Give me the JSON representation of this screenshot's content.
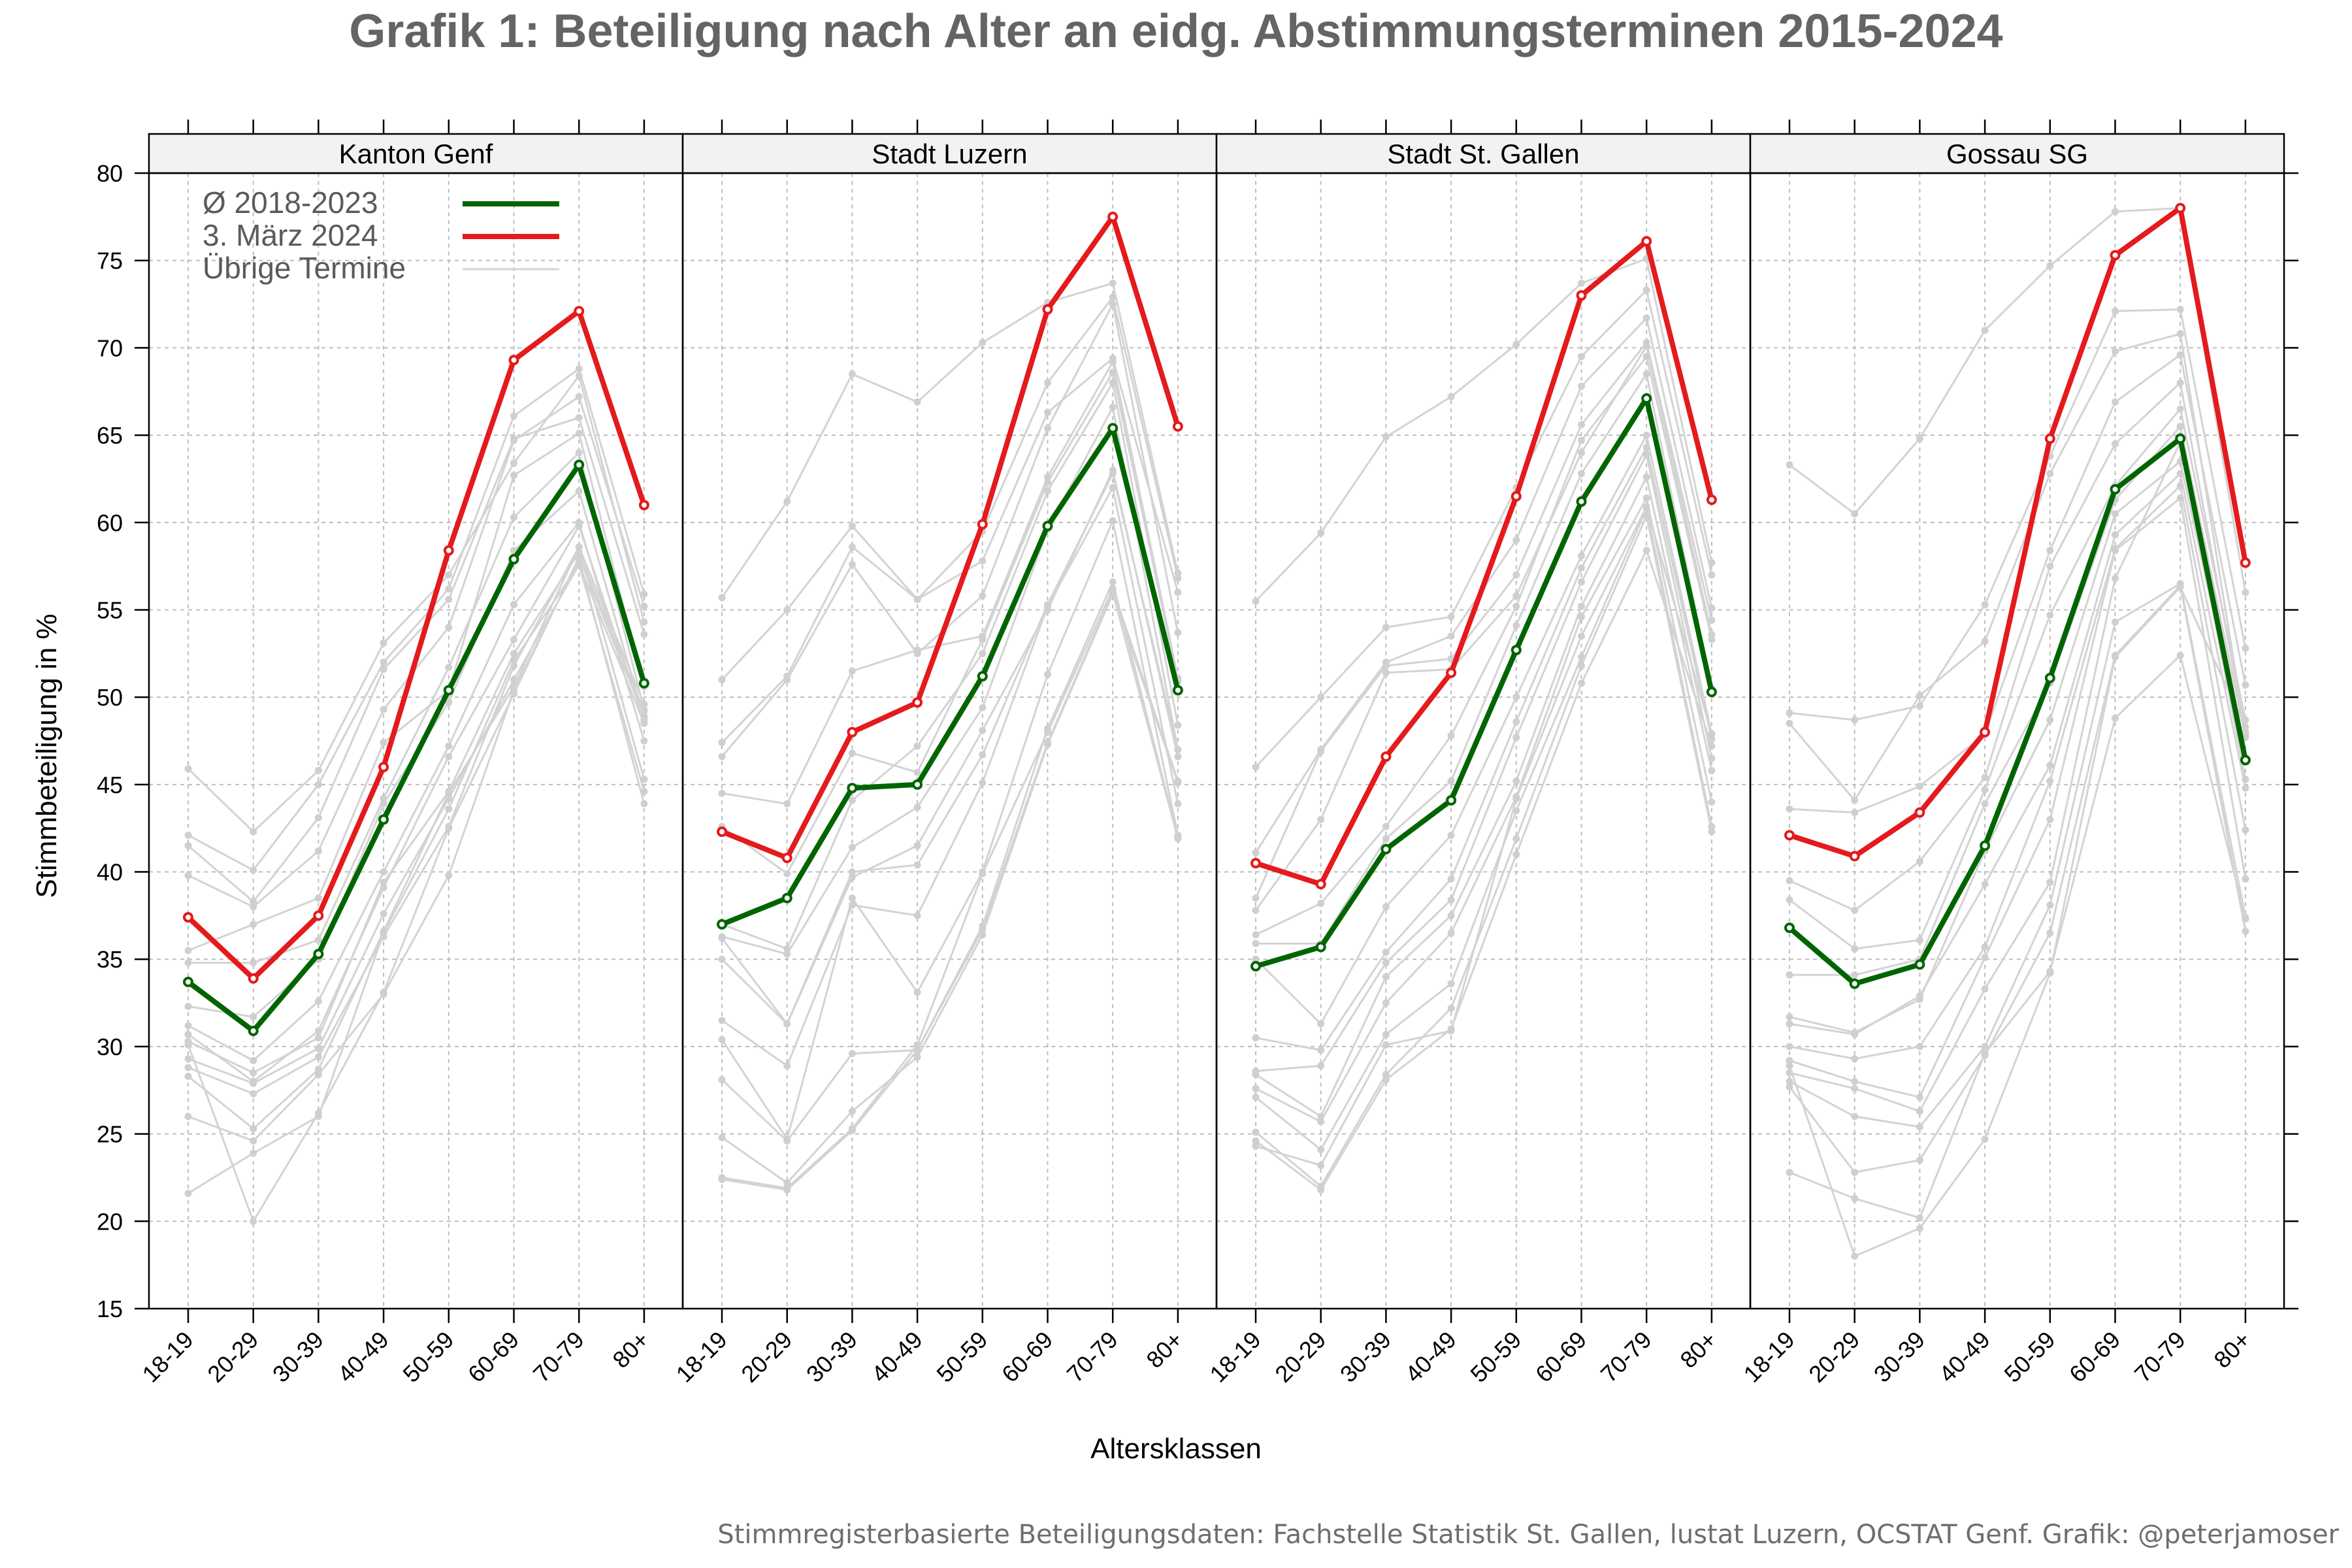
{
  "chart_data": {
    "type": "line",
    "title": "Grafik 1: Beteiligung nach Alter an eidg. Abstimmungsterminen 2015-2024",
    "xlabel": "Altersklassen",
    "ylabel": "Stimmbeteiligung in %",
    "ylim": [
      15,
      80
    ],
    "yticks": [
      15,
      20,
      25,
      30,
      35,
      40,
      45,
      50,
      55,
      60,
      65,
      70,
      75,
      80
    ],
    "categories": [
      "18-19",
      "20-29",
      "30-39",
      "40-49",
      "50-59",
      "60-69",
      "70-79",
      "80+"
    ],
    "grid": true,
    "legend_position": "top-left",
    "legend": [
      {
        "label": "Ø 2018-2023",
        "color": "#006400"
      },
      {
        "label": "3. März 2024",
        "color": "#e41a1c"
      },
      {
        "label": "Übrige Termine",
        "color": "#d3d3d3"
      }
    ],
    "colors": {
      "avg": "#006400",
      "march": "#e41a1c",
      "other": "#d3d3d3",
      "strip": "#f2f2f2",
      "grid": "#bdbdbd"
    },
    "source": "Stimmregisterbasierte Beteiligungsdaten: Fachstelle Statistik St. Gallen, lustat Luzern, OCSTAT Genf. Grafik: @peterjamoser",
    "panels": [
      {
        "name": "Kanton Genf",
        "series": [
          {
            "name": "Ø 2018-2023",
            "values": [
              33.7,
              30.9,
              35.3,
              43.0,
              50.4,
              57.9,
              63.3,
              50.8
            ]
          },
          {
            "name": "3. März 2024",
            "values": [
              37.4,
              33.9,
              37.5,
              46.0,
              58.4,
              69.3,
              72.1,
              61.0
            ]
          }
        ],
        "others": [
          [
            45.9,
            42.3,
            45.8,
            53.1,
            57.0,
            63.4,
            68.4,
            54.3
          ],
          [
            42.1,
            40.1,
            45.0,
            52.0,
            56.2,
            66.1,
            68.8,
            55.9
          ],
          [
            41.5,
            38.3,
            43.1,
            51.6,
            55.6,
            64.8,
            66.0,
            53.6
          ],
          [
            39.8,
            38.0,
            41.2,
            49.3,
            54.0,
            64.7,
            67.2,
            55.2
          ],
          [
            35.5,
            37.0,
            38.5,
            47.4,
            50.4,
            62.7,
            65.1,
            50.6
          ],
          [
            34.8,
            34.8,
            36.1,
            44.2,
            51.7,
            60.3,
            64.0,
            49.3
          ],
          [
            32.3,
            31.7,
            35.0,
            43.9,
            49.7,
            58.4,
            61.8,
            48.7
          ],
          [
            31.2,
            29.2,
            32.6,
            40.0,
            47.2,
            55.3,
            60.0,
            47.5
          ],
          [
            30.7,
            28.0,
            30.9,
            39.1,
            46.6,
            53.3,
            59.8,
            48.6
          ],
          [
            30.3,
            28.5,
            30.5,
            39.4,
            44.6,
            52.5,
            58.3,
            49.2
          ],
          [
            29.3,
            27.9,
            29.9,
            37.6,
            44.2,
            51.0,
            57.6,
            44.6
          ],
          [
            28.8,
            27.3,
            29.4,
            36.3,
            42.6,
            51.8,
            58.6,
            49.6
          ],
          [
            28.3,
            25.3,
            28.7,
            36.6,
            44.5,
            50.6,
            58.6,
            45.3
          ],
          [
            26.0,
            24.6,
            28.4,
            33.0,
            39.8,
            50.4,
            57.9,
            43.9
          ],
          [
            21.6,
            23.9,
            26.0,
            36.5,
            43.6,
            52.1,
            57.6,
            48.5
          ],
          [
            30.1,
            20.0,
            26.2,
            33.1,
            42.5,
            50.2,
            58.0,
            48.9
          ]
        ]
      },
      {
        "name": "Stadt Luzern",
        "series": [
          {
            "name": "Ø 2018-2023",
            "values": [
              37.0,
              38.5,
              44.8,
              45.0,
              51.2,
              59.8,
              65.4,
              50.4
            ]
          },
          {
            "name": "3. März 2024",
            "values": [
              42.3,
              40.8,
              48.0,
              49.7,
              59.9,
              72.2,
              77.5,
              65.5
            ]
          }
        ],
        "others": [
          [
            55.7,
            61.2,
            68.5,
            66.9,
            70.3,
            72.6,
            73.7,
            57.1
          ],
          [
            51.0,
            55.0,
            59.8,
            55.6,
            59.5,
            68.0,
            72.9,
            56.8
          ],
          [
            47.4,
            51.2,
            58.6,
            55.6,
            57.8,
            66.3,
            69.4,
            56.0
          ],
          [
            46.6,
            51.0,
            57.6,
            52.5,
            55.8,
            65.4,
            72.5,
            53.7
          ],
          [
            44.5,
            43.9,
            51.5,
            52.7,
            53.5,
            62.6,
            69.2,
            51.1
          ],
          [
            42.6,
            39.9,
            46.8,
            45.7,
            53.3,
            62.3,
            68.6,
            50.9
          ],
          [
            37.0,
            35.6,
            44.1,
            47.2,
            52.5,
            61.8,
            68.0,
            48.4
          ],
          [
            36.3,
            35.3,
            41.4,
            43.7,
            49.4,
            59.6,
            66.6,
            47.0
          ],
          [
            36.2,
            31.3,
            39.7,
            41.5,
            48.1,
            55.0,
            63.0,
            46.6
          ],
          [
            35.0,
            31.3,
            40.0,
            40.4,
            46.7,
            55.3,
            62.8,
            47.0
          ],
          [
            31.5,
            28.9,
            38.1,
            37.5,
            45.1,
            55.2,
            62.0,
            43.9
          ],
          [
            30.4,
            24.7,
            38.5,
            33.1,
            40.0,
            51.3,
            60.1,
            42.1
          ],
          [
            28.1,
            24.6,
            29.6,
            29.8,
            36.9,
            48.2,
            56.6,
            42.0
          ],
          [
            24.8,
            22.2,
            26.3,
            29.4,
            36.4,
            47.3,
            55.9,
            45.1
          ],
          [
            22.5,
            21.9,
            25.3,
            30.1,
            39.9,
            48.0,
            56.2,
            45.2
          ],
          [
            22.4,
            21.8,
            25.2,
            29.8,
            36.7,
            47.4,
            56.0,
            41.9
          ]
        ]
      },
      {
        "name": "Stadt St. Gallen",
        "series": [
          {
            "name": "Ø 2018-2023",
            "values": [
              34.6,
              35.7,
              41.3,
              44.1,
              52.7,
              61.2,
              67.1,
              50.3
            ]
          },
          {
            "name": "3. März 2024",
            "values": [
              40.5,
              39.3,
              46.6,
              51.4,
              61.5,
              73.0,
              76.1,
              61.3
            ]
          }
        ],
        "others": [
          [
            55.5,
            59.4,
            64.9,
            67.2,
            70.2,
            73.7,
            75.1,
            57.7
          ],
          [
            46.0,
            50.0,
            54.0,
            54.6,
            62.0,
            69.5,
            73.3,
            57.0
          ],
          [
            41.1,
            47.0,
            52.0,
            53.5,
            59.0,
            67.8,
            71.7,
            55.1
          ],
          [
            38.5,
            46.9,
            51.8,
            52.2,
            57.0,
            65.6,
            70.3,
            54.4
          ],
          [
            37.8,
            43.0,
            51.4,
            51.6,
            55.8,
            64.0,
            70.1,
            53.6
          ],
          [
            36.4,
            38.2,
            42.6,
            47.8,
            55.2,
            64.7,
            69.5,
            53.3
          ],
          [
            35.9,
            35.9,
            41.9,
            45.2,
            54.1,
            62.8,
            68.5,
            50.5
          ],
          [
            35.0,
            31.3,
            38.0,
            42.1,
            50.0,
            58.1,
            65.0,
            47.9
          ],
          [
            30.5,
            29.8,
            35.4,
            39.6,
            48.6,
            57.4,
            64.3,
            47.6
          ],
          [
            28.6,
            28.9,
            34.8,
            38.4,
            47.7,
            56.6,
            63.9,
            46.5
          ],
          [
            28.4,
            26.0,
            34.0,
            37.5,
            45.2,
            55.2,
            62.6,
            45.8
          ],
          [
            27.6,
            25.7,
            32.5,
            36.5,
            44.3,
            54.6,
            61.4,
            44.0
          ],
          [
            27.1,
            24.1,
            30.7,
            33.6,
            43.5,
            52.3,
            60.8,
            42.6
          ],
          [
            25.1,
            22.0,
            28.4,
            32.2,
            41.9,
            51.8,
            60.4,
            42.3
          ],
          [
            24.6,
            21.8,
            28.1,
            31.0,
            41.0,
            50.8,
            58.4,
            47.2
          ],
          [
            24.3,
            23.2,
            30.1,
            30.9,
            44.2,
            53.5,
            60.9,
            47.9
          ]
        ]
      },
      {
        "name": "Gossau SG",
        "series": [
          {
            "name": "Ø 2018-2023",
            "values": [
              36.8,
              33.6,
              34.7,
              41.5,
              51.1,
              61.9,
              64.8,
              46.4
            ]
          },
          {
            "name": "3. März 2024",
            "values": [
              42.1,
              40.9,
              43.4,
              48.0,
              64.8,
              75.3,
              78.0,
              57.7
            ]
          }
        ],
        "others": [
          [
            63.3,
            60.5,
            64.8,
            71.0,
            74.7,
            77.8,
            78.0,
            56.0
          ],
          [
            49.1,
            48.7,
            49.5,
            55.3,
            63.8,
            72.1,
            72.2,
            52.8
          ],
          [
            48.5,
            44.1,
            50.1,
            53.2,
            62.8,
            69.8,
            70.8,
            48.0
          ],
          [
            43.6,
            43.4,
            44.9,
            47.9,
            58.4,
            66.9,
            69.6,
            50.7
          ],
          [
            39.5,
            37.8,
            40.6,
            45.4,
            57.5,
            64.5,
            68.0,
            47.9
          ],
          [
            38.4,
            35.6,
            36.1,
            44.7,
            54.7,
            62.1,
            66.5,
            48.7
          ],
          [
            34.1,
            34.1,
            35.0,
            43.9,
            50.8,
            61.3,
            65.5,
            47.7
          ],
          [
            31.7,
            30.8,
            32.7,
            41.2,
            48.7,
            60.5,
            63.5,
            46.4
          ],
          [
            31.3,
            30.7,
            32.9,
            39.3,
            46.1,
            59.3,
            62.8,
            44.8
          ],
          [
            30.0,
            29.3,
            30.0,
            35.7,
            45.2,
            58.5,
            62.1,
            42.4
          ],
          [
            29.2,
            28.0,
            27.1,
            35.1,
            43.0,
            58.4,
            61.4,
            39.6
          ],
          [
            28.5,
            27.6,
            26.3,
            33.3,
            39.4,
            56.8,
            64.6,
            45.3
          ],
          [
            28.0,
            26.0,
            25.4,
            30.0,
            38.1,
            54.3,
            56.5,
            37.4
          ],
          [
            27.7,
            22.8,
            23.5,
            29.5,
            36.5,
            52.4,
            56.4,
            36.6
          ],
          [
            22.8,
            21.3,
            20.2,
            29.6,
            34.3,
            48.8,
            52.4,
            37.3
          ],
          [
            28.9,
            18.0,
            19.6,
            24.7,
            34.2,
            52.3,
            56.3,
            48.3
          ]
        ]
      }
    ]
  }
}
